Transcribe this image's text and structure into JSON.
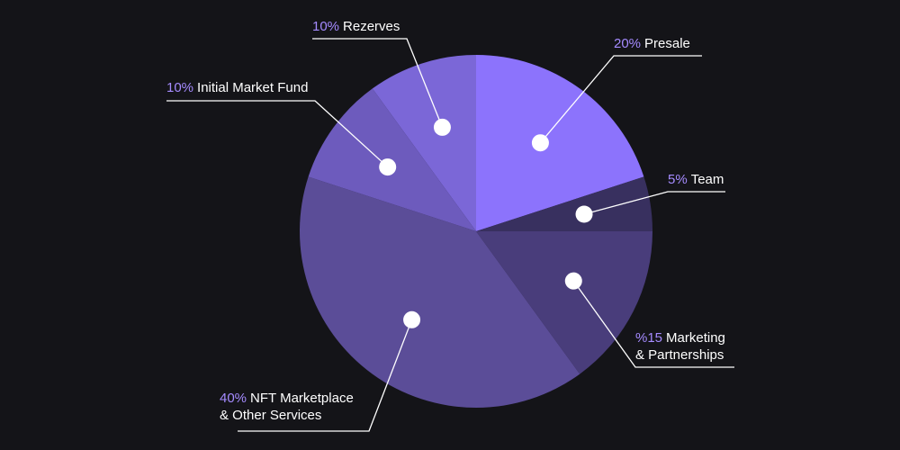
{
  "chart_data": {
    "type": "pie",
    "title": "",
    "start_angle_deg": 0,
    "direction": "clockwise",
    "legend": "callouts",
    "slices": [
      {
        "key": "presale",
        "percent_label": "20%",
        "name": "Presale",
        "value": 20,
        "color": "#8c73fc"
      },
      {
        "key": "team",
        "percent_label": "5%",
        "name": "Team",
        "value": 5,
        "color": "#38305f"
      },
      {
        "key": "marketing",
        "percent_label": "%15",
        "name": "Marketing",
        "name2": "& Partnerships",
        "value": 15,
        "color": "#493d7b"
      },
      {
        "key": "nft",
        "percent_label": "40%",
        "name": "NFT Marketplace",
        "name2": "& Other Services",
        "value": 40,
        "color": "#5b4d98"
      },
      {
        "key": "imf",
        "percent_label": "10%",
        "name": "Initial Market Fund",
        "value": 10,
        "color": "#6d5bbd"
      },
      {
        "key": "rezerves",
        "percent_label": "10%",
        "name": "Rezerves",
        "value": 10,
        "color": "#7b67d7"
      }
    ]
  }
}
